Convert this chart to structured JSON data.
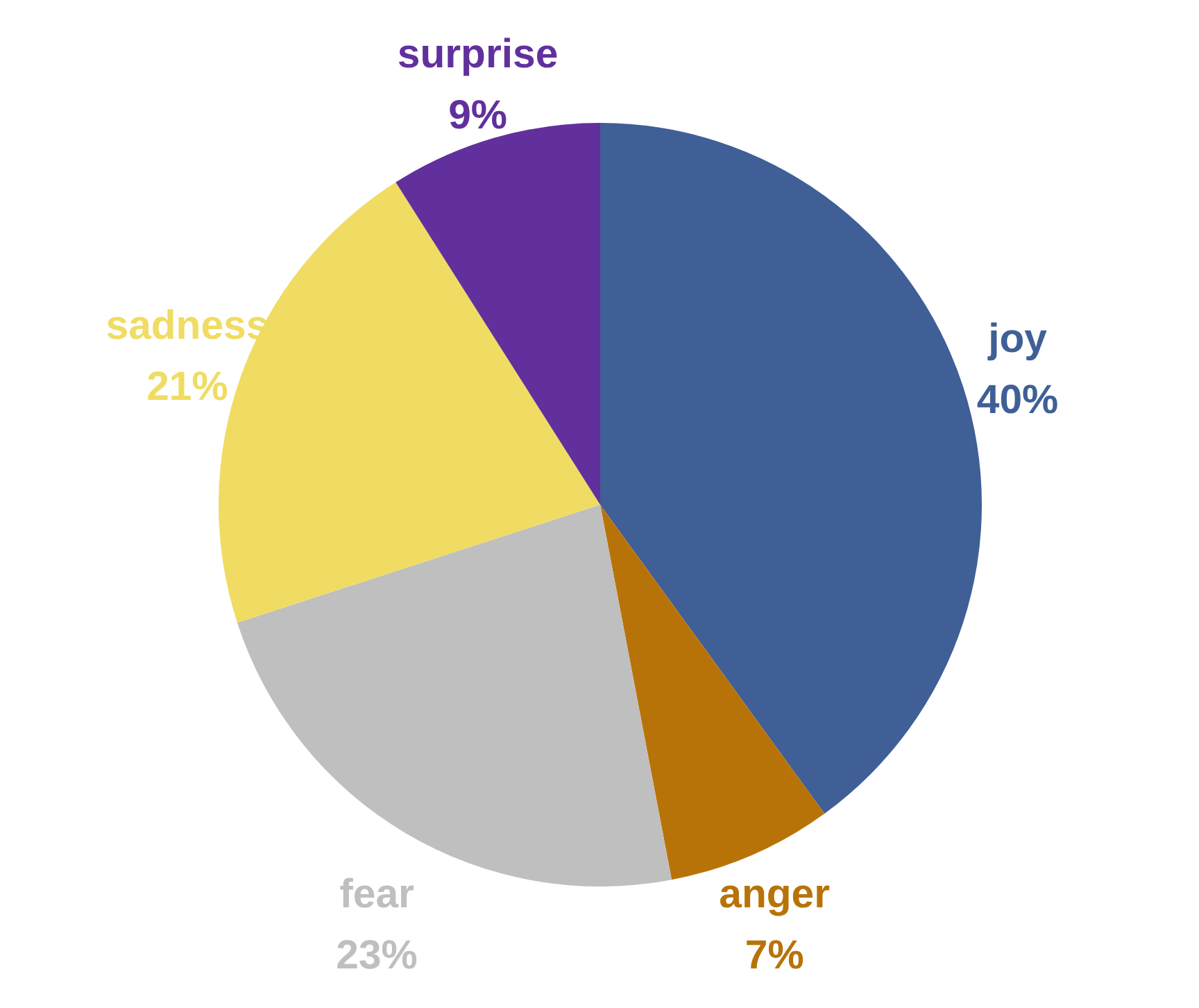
{
  "chart_data": {
    "type": "pie",
    "categories": [
      "joy",
      "anger",
      "fear",
      "sadness",
      "surprise"
    ],
    "values": [
      40,
      7,
      23,
      21,
      9
    ],
    "value_labels": [
      "40%",
      "7%",
      "23%",
      "21%",
      "9%"
    ],
    "colors": [
      "#3f5f96",
      "#b87308",
      "#bfbfbf",
      "#f0dc62",
      "#62309c"
    ]
  }
}
